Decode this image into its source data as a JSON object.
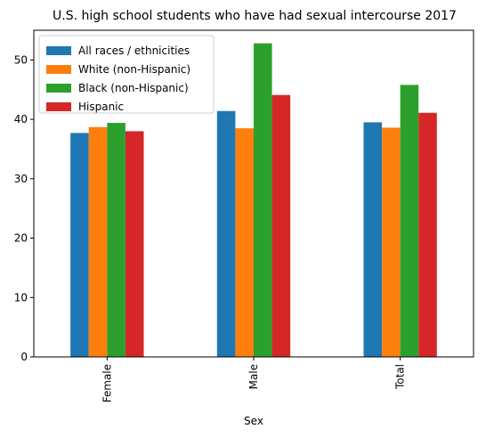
{
  "chart_data": {
    "type": "bar",
    "title": "U.S. high school students who have had sexual intercourse 2017",
    "xlabel": "Sex",
    "ylabel": "",
    "categories": [
      "Female",
      "Male",
      "Total"
    ],
    "ylim": [
      0,
      55
    ],
    "yticks": [
      0,
      10,
      20,
      30,
      40,
      50
    ],
    "grid": false,
    "legend_position": "top-left",
    "series": [
      {
        "name": "All races / ethnicities",
        "color": "#1f77b4",
        "values": [
          37.7,
          41.4,
          39.5
        ]
      },
      {
        "name": "White (non-Hispanic)",
        "color": "#ff7f0e",
        "values": [
          38.7,
          38.5,
          38.6
        ]
      },
      {
        "name": "Black (non-Hispanic)",
        "color": "#2ca02c",
        "values": [
          39.4,
          52.8,
          45.8
        ]
      },
      {
        "name": "Hispanic",
        "color": "#d62728",
        "values": [
          38.0,
          44.1,
          41.1
        ]
      }
    ]
  }
}
